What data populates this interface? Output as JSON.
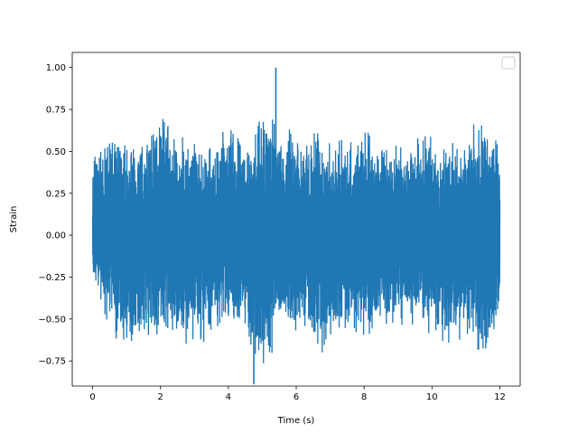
{
  "chart_data": {
    "type": "line",
    "title": "",
    "xlabel": "Time (s)",
    "ylabel": "Strain",
    "xlim": [
      -0.6,
      12.6
    ],
    "ylim": [
      -0.9,
      1.09
    ],
    "xticks": [
      0,
      2,
      4,
      6,
      8,
      10,
      12
    ],
    "xtick_labels": [
      "0",
      "2",
      "4",
      "6",
      "8",
      "10",
      "12"
    ],
    "yticks": [
      -0.75,
      -0.5,
      -0.25,
      0.0,
      0.25,
      0.5,
      0.75,
      1.0
    ],
    "ytick_labels": [
      "−0.75",
      "−0.50",
      "−0.25",
      "0.00",
      "0.25",
      "0.50",
      "0.75",
      "1.00"
    ],
    "grid": false,
    "legend": "top-right (empty)",
    "line_color": "#1f77b4",
    "series": [
      {
        "x": [
          0.0,
          0.5,
          1.0,
          1.5,
          2.0,
          2.5,
          3.0,
          3.5,
          4.0,
          4.5,
          5.0,
          5.5,
          6.0,
          6.5,
          7.0,
          7.5,
          8.0,
          8.5,
          9.0,
          9.5,
          10.0,
          10.5,
          11.0,
          11.5,
          12.0
        ],
        "upper_envelope": [
          0.49,
          0.62,
          0.58,
          0.62,
          0.86,
          0.63,
          0.6,
          0.56,
          0.72,
          0.55,
          0.86,
          0.72,
          0.61,
          0.66,
          0.57,
          0.6,
          0.71,
          0.52,
          0.6,
          0.62,
          0.7,
          0.55,
          0.61,
          0.82,
          0.58
        ],
        "lower_envelope": [
          -0.3,
          -0.55,
          -0.77,
          -0.6,
          -0.65,
          -0.62,
          -0.72,
          -0.57,
          -0.55,
          -0.57,
          -0.9,
          -0.62,
          -0.62,
          -0.72,
          -0.75,
          -0.6,
          -0.7,
          -0.55,
          -0.57,
          -0.55,
          -0.65,
          -0.7,
          -0.6,
          -0.77,
          -0.61
        ],
        "peak_max": {
          "x": 5.4,
          "y": 1.0
        },
        "peak_min": {
          "x": 4.75,
          "y": -0.89
        },
        "x_range": [
          0.0,
          12.0
        ]
      }
    ]
  }
}
